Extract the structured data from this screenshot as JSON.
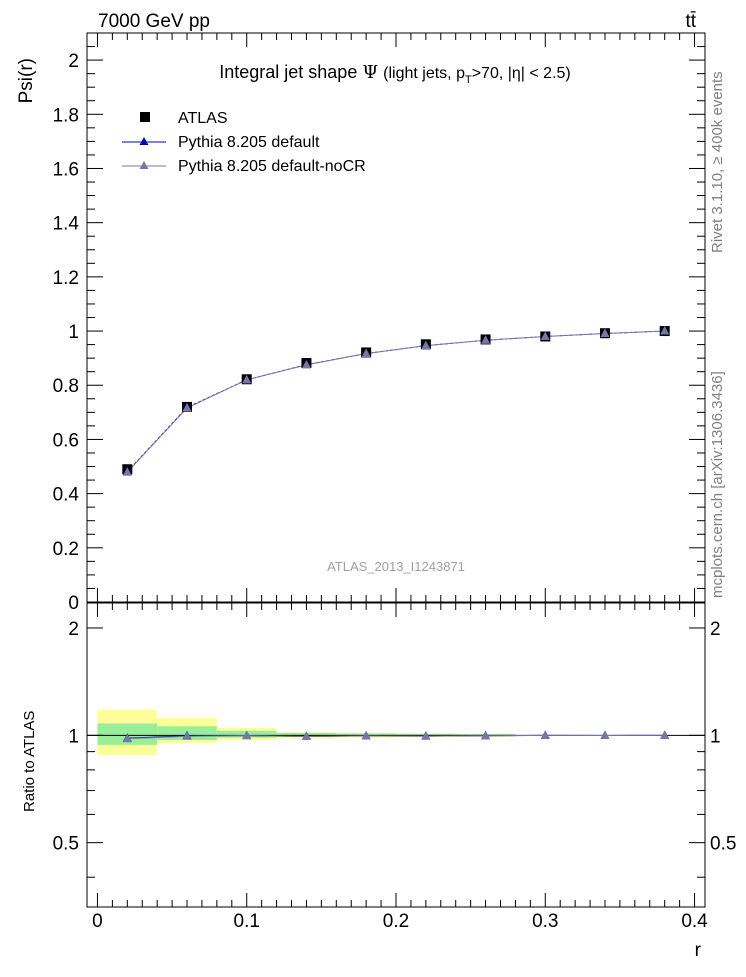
{
  "header": {
    "left": "7000 GeV pp",
    "right": "tt̄"
  },
  "side_labels": {
    "rivet": "Rivet 3.1.10, ≥ 400k events",
    "mcplots": "mcplots.cern.ch [arXiv:1306.3436]"
  },
  "chart_data": [
    {
      "type": "line",
      "panel": "main",
      "title": "Integral jet shape Ψ (light jets, pT>70, |η| < 2.5)",
      "title_parts": {
        "main": "Integral jet shape",
        "symbol": "Ψ",
        "open": "(light jets, p",
        "sub": "T",
        "rest": ">70, |η| < 2.5)"
      },
      "ylabel": "Psi(r)",
      "xlabel": "r",
      "xlim": [
        -0.007,
        0.407
      ],
      "ylim": [
        0,
        2.1
      ],
      "yticks": [
        0,
        0.2,
        0.4,
        0.6,
        0.8,
        1,
        1.2,
        1.4,
        1.6,
        1.8,
        2
      ],
      "ytick_labels": [
        "0",
        "0.2",
        "0.4",
        "0.6",
        "0.8",
        "1",
        "1.2",
        "1.4",
        "1.6",
        "1.8",
        "2"
      ],
      "watermark": "ATLAS_2013_I1243871",
      "legend": [
        "ATLAS",
        "Pythia 8.205 default",
        "Pythia 8.205 default-noCR"
      ],
      "x": [
        0.02,
        0.06,
        0.1,
        0.14,
        0.18,
        0.22,
        0.26,
        0.3,
        0.34,
        0.38
      ],
      "series": [
        {
          "name": "ATLAS",
          "color": "#000000",
          "marker": "square",
          "values": [
            0.49,
            0.72,
            0.822,
            0.882,
            0.921,
            0.951,
            0.969,
            0.98,
            0.992,
            1.0
          ]
        },
        {
          "name": "Pythia 8.205 default",
          "color": "#0000b4",
          "marker": "triangle",
          "values": [
            0.481,
            0.718,
            0.82,
            0.876,
            0.917,
            0.946,
            0.966,
            0.98,
            0.991,
            1.0
          ]
        },
        {
          "name": "Pythia 8.205 default-noCR",
          "color": "#7777a6",
          "marker": "triangle",
          "values": [
            0.479,
            0.716,
            0.82,
            0.875,
            0.917,
            0.946,
            0.966,
            0.98,
            0.991,
            1.0
          ]
        }
      ]
    },
    {
      "type": "line",
      "panel": "ratio",
      "ylabel": "Ratio to ATLAS",
      "xlabel": "r",
      "xlim": [
        -0.007,
        0.407
      ],
      "ylim": [
        0.33,
        2.35
      ],
      "xticks": [
        0,
        0.1,
        0.2,
        0.3,
        0.4
      ],
      "xtick_labels": [
        "0",
        "0.1",
        "0.2",
        "0.3",
        "0.4"
      ],
      "yticks": [
        0.5,
        1,
        2
      ],
      "ytick_labels": [
        "0.5",
        "1",
        "2"
      ],
      "bands": [
        {
          "x0": 0.0,
          "x1": 0.04,
          "yellow": [
            0.88,
            1.18
          ],
          "green": [
            0.94,
            1.08
          ]
        },
        {
          "x0": 0.04,
          "x1": 0.08,
          "yellow": [
            0.95,
            1.12
          ],
          "green": [
            0.97,
            1.06
          ]
        },
        {
          "x0": 0.08,
          "x1": 0.12,
          "yellow": [
            0.97,
            1.05
          ],
          "green": [
            0.985,
            1.03
          ]
        },
        {
          "x0": 0.12,
          "x1": 0.16,
          "yellow": [
            0.98,
            1.02
          ],
          "green": [
            0.99,
            1.015
          ]
        },
        {
          "x0": 0.16,
          "x1": 0.2,
          "yellow": [
            0.985,
            1.015
          ],
          "green": [
            0.992,
            1.012
          ]
        },
        {
          "x0": 0.2,
          "x1": 0.24,
          "yellow": [
            0.988,
            1.012
          ],
          "green": [
            0.994,
            1.01
          ]
        },
        {
          "x0": 0.24,
          "x1": 0.28,
          "yellow": [
            0.99,
            1.01
          ],
          "green": [
            0.995,
            1.008
          ]
        }
      ],
      "series": [
        {
          "name": "Pythia 8.205 default",
          "color": "#0000b4",
          "values": [
            0.981,
            0.997,
            0.998,
            0.993,
            0.996,
            0.995,
            0.997,
            1.0,
            0.999,
            1.0
          ]
        },
        {
          "name": "Pythia 8.205 default-noCR",
          "color": "#7777a6",
          "values": [
            0.978,
            0.994,
            0.998,
            0.992,
            0.996,
            0.995,
            0.997,
            1.0,
            0.999,
            1.0
          ]
        }
      ]
    }
  ]
}
